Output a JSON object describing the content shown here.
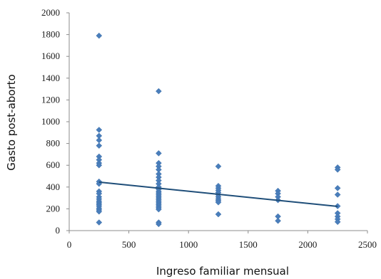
{
  "chart_data": {
    "type": "scatter",
    "title": "",
    "xlabel": "Ingreso  familiar mensual",
    "ylabel": "Gasto post-aborto",
    "xlim": [
      0,
      2500
    ],
    "ylim": [
      0,
      2000
    ],
    "x_ticks": [
      "0",
      "500",
      "1000",
      "1500",
      "2000",
      "2500"
    ],
    "y_ticks": [
      "0",
      "200",
      "400",
      "600",
      "800",
      "1000",
      "1200",
      "1400",
      "1600",
      "1800",
      "2000"
    ],
    "grid": false,
    "legend": "none",
    "series": [
      {
        "marker": "diamond",
        "color": "#4a7ebb",
        "points": [
          [
            250,
            1790
          ],
          [
            250,
            925
          ],
          [
            250,
            870
          ],
          [
            250,
            830
          ],
          [
            250,
            780
          ],
          [
            250,
            680
          ],
          [
            250,
            650
          ],
          [
            250,
            620
          ],
          [
            250,
            600
          ],
          [
            250,
            450
          ],
          [
            250,
            430
          ],
          [
            250,
            360
          ],
          [
            250,
            340
          ],
          [
            250,
            310
          ],
          [
            250,
            290
          ],
          [
            250,
            270
          ],
          [
            250,
            255
          ],
          [
            250,
            240
          ],
          [
            250,
            225
          ],
          [
            250,
            205
          ],
          [
            250,
            190
          ],
          [
            250,
            175
          ],
          [
            250,
            75
          ],
          [
            750,
            1280
          ],
          [
            750,
            710
          ],
          [
            750,
            620
          ],
          [
            750,
            590
          ],
          [
            750,
            560
          ],
          [
            750,
            520
          ],
          [
            750,
            490
          ],
          [
            750,
            460
          ],
          [
            750,
            430
          ],
          [
            750,
            400
          ],
          [
            750,
            380
          ],
          [
            750,
            360
          ],
          [
            750,
            345
          ],
          [
            750,
            330
          ],
          [
            750,
            315
          ],
          [
            750,
            300
          ],
          [
            750,
            285
          ],
          [
            750,
            270
          ],
          [
            750,
            255
          ],
          [
            750,
            240
          ],
          [
            750,
            225
          ],
          [
            750,
            210
          ],
          [
            750,
            195
          ],
          [
            750,
            75
          ],
          [
            750,
            60
          ],
          [
            1250,
            590
          ],
          [
            1250,
            410
          ],
          [
            1250,
            390
          ],
          [
            1250,
            370
          ],
          [
            1250,
            350
          ],
          [
            1250,
            330
          ],
          [
            1250,
            310
          ],
          [
            1250,
            290
          ],
          [
            1250,
            275
          ],
          [
            1250,
            260
          ],
          [
            1250,
            150
          ],
          [
            1750,
            365
          ],
          [
            1750,
            340
          ],
          [
            1750,
            310
          ],
          [
            1750,
            280
          ],
          [
            1750,
            130
          ],
          [
            1750,
            90
          ],
          [
            2250,
            580
          ],
          [
            2250,
            560
          ],
          [
            2250,
            390
          ],
          [
            2250,
            330
          ],
          [
            2250,
            225
          ],
          [
            2250,
            160
          ],
          [
            2250,
            130
          ],
          [
            2250,
            105
          ],
          [
            2250,
            80
          ]
        ]
      }
    ],
    "trendline": {
      "type": "linear",
      "color": "#1f4e79",
      "x": [
        250,
        2250
      ],
      "y": [
        445,
        222
      ]
    }
  }
}
